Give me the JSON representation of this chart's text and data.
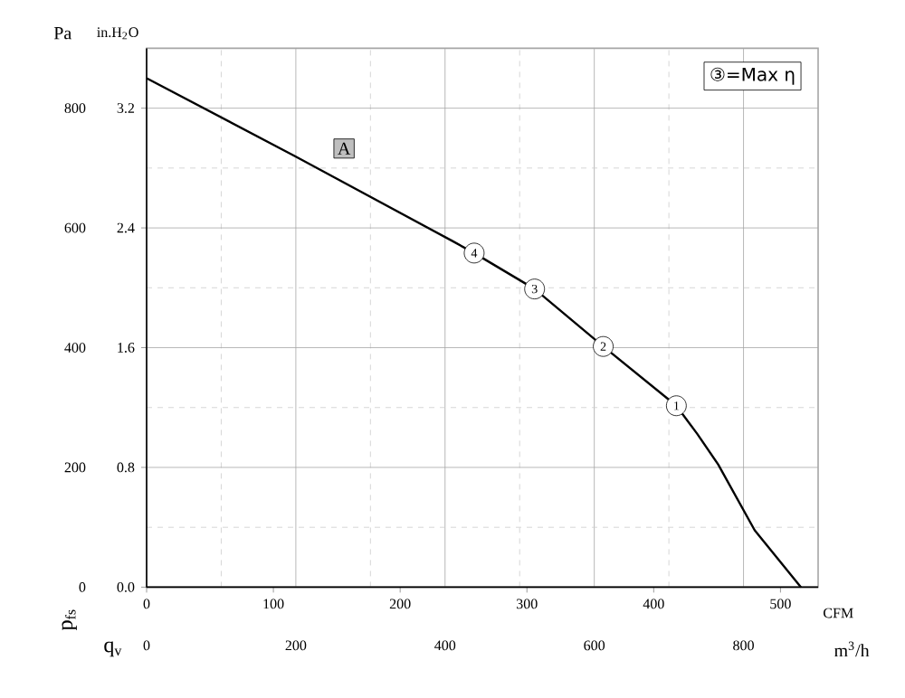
{
  "chart_data": {
    "type": "line",
    "xlabel": "m$^{3}$/h",
    "ylabel": "Pa",
    "y2label": "in.H$_{2}$O",
    "x2label": "CFM",
    "x": [
      0,
      200,
      410,
      439,
      520,
      612,
      710,
      738,
      766,
      815,
      877
    ],
    "series": [
      {
        "color": "#000000",
        "values": [
          850,
          719,
          578,
          558,
          498,
          402,
          303,
          256,
          205,
          95,
          0
        ]
      }
    ],
    "xlim": [
      0,
      900
    ],
    "xticks": [
      0,
      200,
      400,
      600,
      800
    ],
    "ylim": [
      0,
      900
    ],
    "yticks": [
      0,
      200,
      400,
      600,
      800
    ],
    "y2lim": [
      0,
      3.6
    ],
    "y2ticks": [
      {
        "value": 0,
        "label": "0.0"
      },
      0.8,
      1.6,
      2.4,
      3.2
    ],
    "x2lim": [
      0,
      529.7
    ],
    "x2ticks": [
      0,
      100,
      200,
      300,
      400,
      500
    ],
    "annotations": [
      {
        "text": "4",
        "x": 439,
        "y": 558
      },
      {
        "text": "3",
        "x": 520,
        "y": 498
      },
      {
        "text": "2",
        "x": 612,
        "y": 402
      },
      {
        "text": "1",
        "x": 710,
        "y": 303
      },
      "A",
      "③=Max η",
      "p$_{fs}$",
      "q$_{v}$"
    ],
    "grid": true,
    "marker": "none",
    "line_style": "solid"
  }
}
